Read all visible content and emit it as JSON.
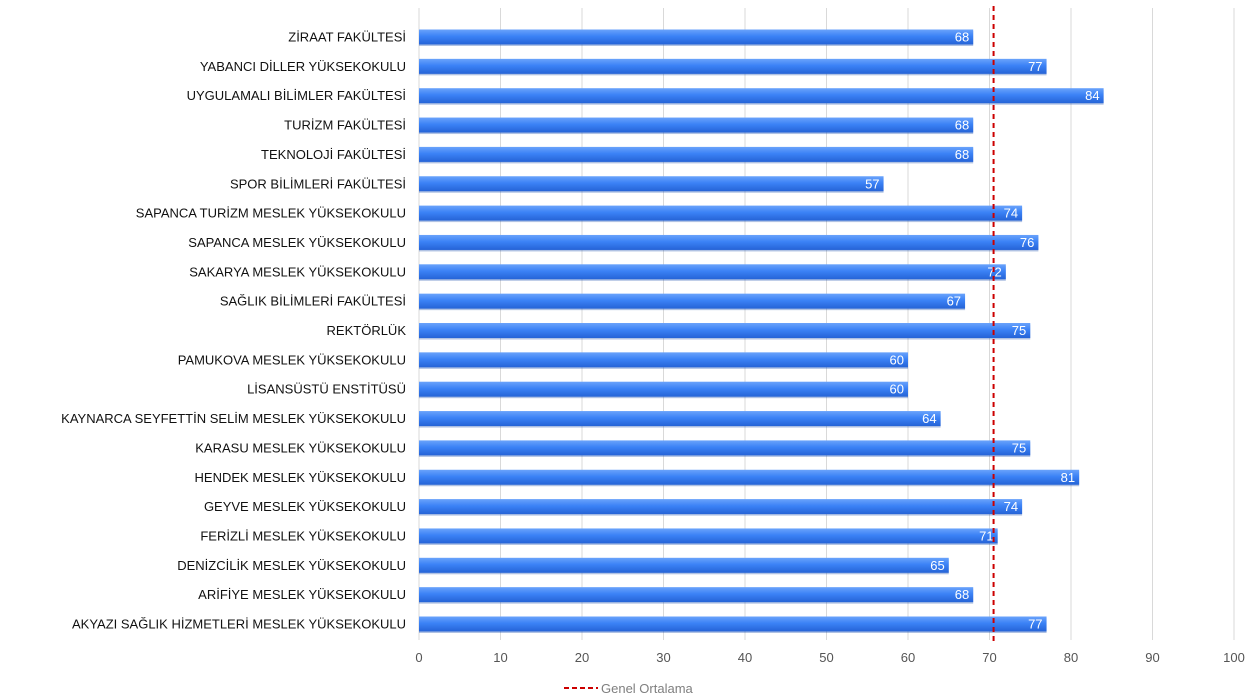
{
  "chart_data": {
    "type": "bar",
    "orientation": "horizontal",
    "categories": [
      "ZİRAAT FAKÜLTESİ",
      "YABANCI DİLLER YÜKSEKOKULU",
      "UYGULAMALI BİLİMLER FAKÜLTESİ",
      "TURİZM FAKÜLTESİ",
      "TEKNOLOJİ FAKÜLTESİ",
      "SPOR BİLİMLERİ FAKÜLTESİ",
      "SAPANCA TURİZM  MESLEK YÜKSEKOKULU",
      "SAPANCA  MESLEK YÜKSEKOKULU",
      "SAKARYA MESLEK YÜKSEKOKULU",
      "SAĞLIK BİLİMLERİ FAKÜLTESİ",
      "REKTÖRLÜK",
      "PAMUKOVA  MESLEK YÜKSEKOKULU",
      "LİSANSÜSTÜ ENSTİTÜSÜ",
      "KAYNARCA SEYFETTİN SELİM  MESLEK YÜKSEKOKULU",
      "KARASU  MESLEK YÜKSEKOKULU",
      "HENDEK  MESLEK YÜKSEKOKULU",
      "GEYVE  MESLEK YÜKSEKOKULU",
      "FERİZLİ  MESLEK YÜKSEKOKULU",
      "DENİZCİLİK  MESLEK YÜKSEKOKULU",
      "ARİFİYE  MESLEK YÜKSEKOKULU",
      "AKYAZI SAĞLIK HİZMETLERİ  MESLEK YÜKSEKOKULU"
    ],
    "values": [
      68,
      77,
      84,
      68,
      68,
      57,
      74,
      76,
      72,
      67,
      75,
      60,
      60,
      64,
      75,
      81,
      74,
      71,
      65,
      68,
      77
    ],
    "value_labels": [
      "68",
      "77",
      "84",
      "68",
      "68",
      "57",
      "74",
      "76",
      "72",
      "67",
      "75",
      "60",
      "60",
      "64",
      "75",
      "81",
      "74",
      "71",
      "65",
      "68",
      "77"
    ],
    "xlim": [
      0,
      100
    ],
    "xticks": [
      0,
      10,
      20,
      30,
      40,
      50,
      60,
      70,
      80,
      90,
      100
    ],
    "xtick_labels": [
      "0",
      "10",
      "20",
      "30",
      "40",
      "50",
      "60",
      "70",
      "80",
      "90",
      "100"
    ],
    "reference_line": {
      "name": "Genel Ortalama",
      "value": 70.5,
      "style": "dashed",
      "color": "#cc0000"
    },
    "legend": {
      "position": "bottom-center",
      "entries": [
        "Genel Ortalama"
      ]
    },
    "grid": {
      "vertical": true,
      "horizontal": false
    },
    "colors": {
      "bar": "#3b82f6",
      "bar_dark": "#2563d6",
      "grid": "#d9d9d9",
      "reference": "#cc0000"
    },
    "title": "",
    "xlabel": "",
    "ylabel": ""
  }
}
